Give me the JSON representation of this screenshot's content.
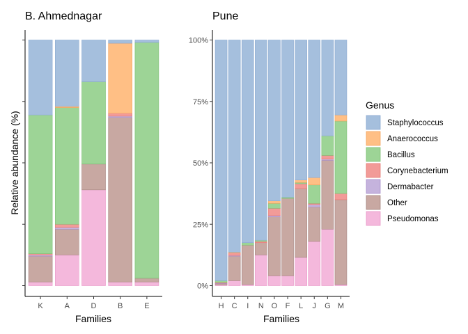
{
  "chart_data": [
    {
      "type": "bar",
      "stacked": true,
      "title": "B. Ahmednagar",
      "xlabel": "Families",
      "ylabel": "Relative abundance (%)",
      "ylim": [
        0,
        100
      ],
      "y_tick_labels_shown": false,
      "categories": [
        "K",
        "A",
        "D",
        "B",
        "E"
      ],
      "series": [
        {
          "name": "Pseudomonas",
          "values": [
            1.5,
            12.5,
            39,
            1.5,
            1.5
          ]
        },
        {
          "name": "Other",
          "values": [
            10.5,
            10.5,
            10.5,
            67,
            1.5
          ]
        },
        {
          "name": "Dermabacter",
          "values": [
            0.5,
            0.7,
            0,
            0.5,
            0
          ]
        },
        {
          "name": "Corynebacterium",
          "values": [
            0.5,
            1.3,
            0,
            1.2,
            0
          ]
        },
        {
          "name": "Bacillus",
          "values": [
            56.5,
            47.5,
            33.5,
            0,
            96
          ]
        },
        {
          "name": "Anaerococcus",
          "values": [
            0,
            0.5,
            0,
            28.5,
            0
          ]
        },
        {
          "name": "Staphylococcus",
          "values": [
            30.5,
            27,
            17,
            1.3,
            1
          ]
        }
      ]
    },
    {
      "type": "bar",
      "stacked": true,
      "title": "Pune",
      "xlabel": "Families",
      "ylabel": "",
      "ylim": [
        0,
        100
      ],
      "y_ticks": [
        0,
        25,
        50,
        75,
        100
      ],
      "y_tick_labels": [
        "0%",
        "25%",
        "50%",
        "75%",
        "100%"
      ],
      "categories": [
        "H",
        "C",
        "I",
        "N",
        "O",
        "F",
        "L",
        "J",
        "G",
        "M"
      ],
      "series": [
        {
          "name": "Pseudomonas",
          "values": [
            0.3,
            2,
            0.5,
            12.5,
            4,
            4,
            11.5,
            18,
            23,
            0.5
          ]
        },
        {
          "name": "Other",
          "values": [
            0.5,
            10,
            16,
            5,
            24,
            31.5,
            28,
            14,
            28,
            34.5
          ]
        },
        {
          "name": "Dermabacter",
          "values": [
            0.2,
            0.3,
            0,
            0,
            0.5,
            0,
            0,
            1,
            0.5,
            0
          ]
        },
        {
          "name": "Corynebacterium",
          "values": [
            0.3,
            1,
            0,
            0.5,
            3,
            0,
            2,
            0.5,
            1.5,
            2.5
          ]
        },
        {
          "name": "Bacillus",
          "values": [
            0.7,
            0,
            1,
            0.5,
            2,
            0.5,
            0.5,
            7.5,
            8,
            29.5
          ]
        },
        {
          "name": "Anaerococcus",
          "values": [
            0,
            0.3,
            0,
            0,
            1,
            0,
            1,
            3,
            0,
            2.5
          ]
        },
        {
          "name": "Staphylococcus",
          "values": [
            98,
            86.4,
            82.5,
            81.5,
            65.5,
            64,
            57,
            56,
            39,
            30.5
          ]
        }
      ]
    }
  ],
  "legend": {
    "title": "Genus",
    "placement": "right",
    "items": [
      {
        "name": "Staphylococcus",
        "fill": "#a5bfdd",
        "stroke": "#8aa9d0"
      },
      {
        "name": "Anaerococcus",
        "fill": "#ffbf85",
        "stroke": "#f2a35c"
      },
      {
        "name": "Bacillus",
        "fill": "#9dd496",
        "stroke": "#7cbf73"
      },
      {
        "name": "Corynebacterium",
        "fill": "#f29b98",
        "stroke": "#e57772"
      },
      {
        "name": "Dermabacter",
        "fill": "#c5b3dd",
        "stroke": "#a98fcc"
      },
      {
        "name": "Other",
        "fill": "#c8a8a2",
        "stroke": "#a68480"
      },
      {
        "name": "Pseudomonas",
        "fill": "#f4b8dc",
        "stroke": "#e897c7"
      }
    ]
  }
}
